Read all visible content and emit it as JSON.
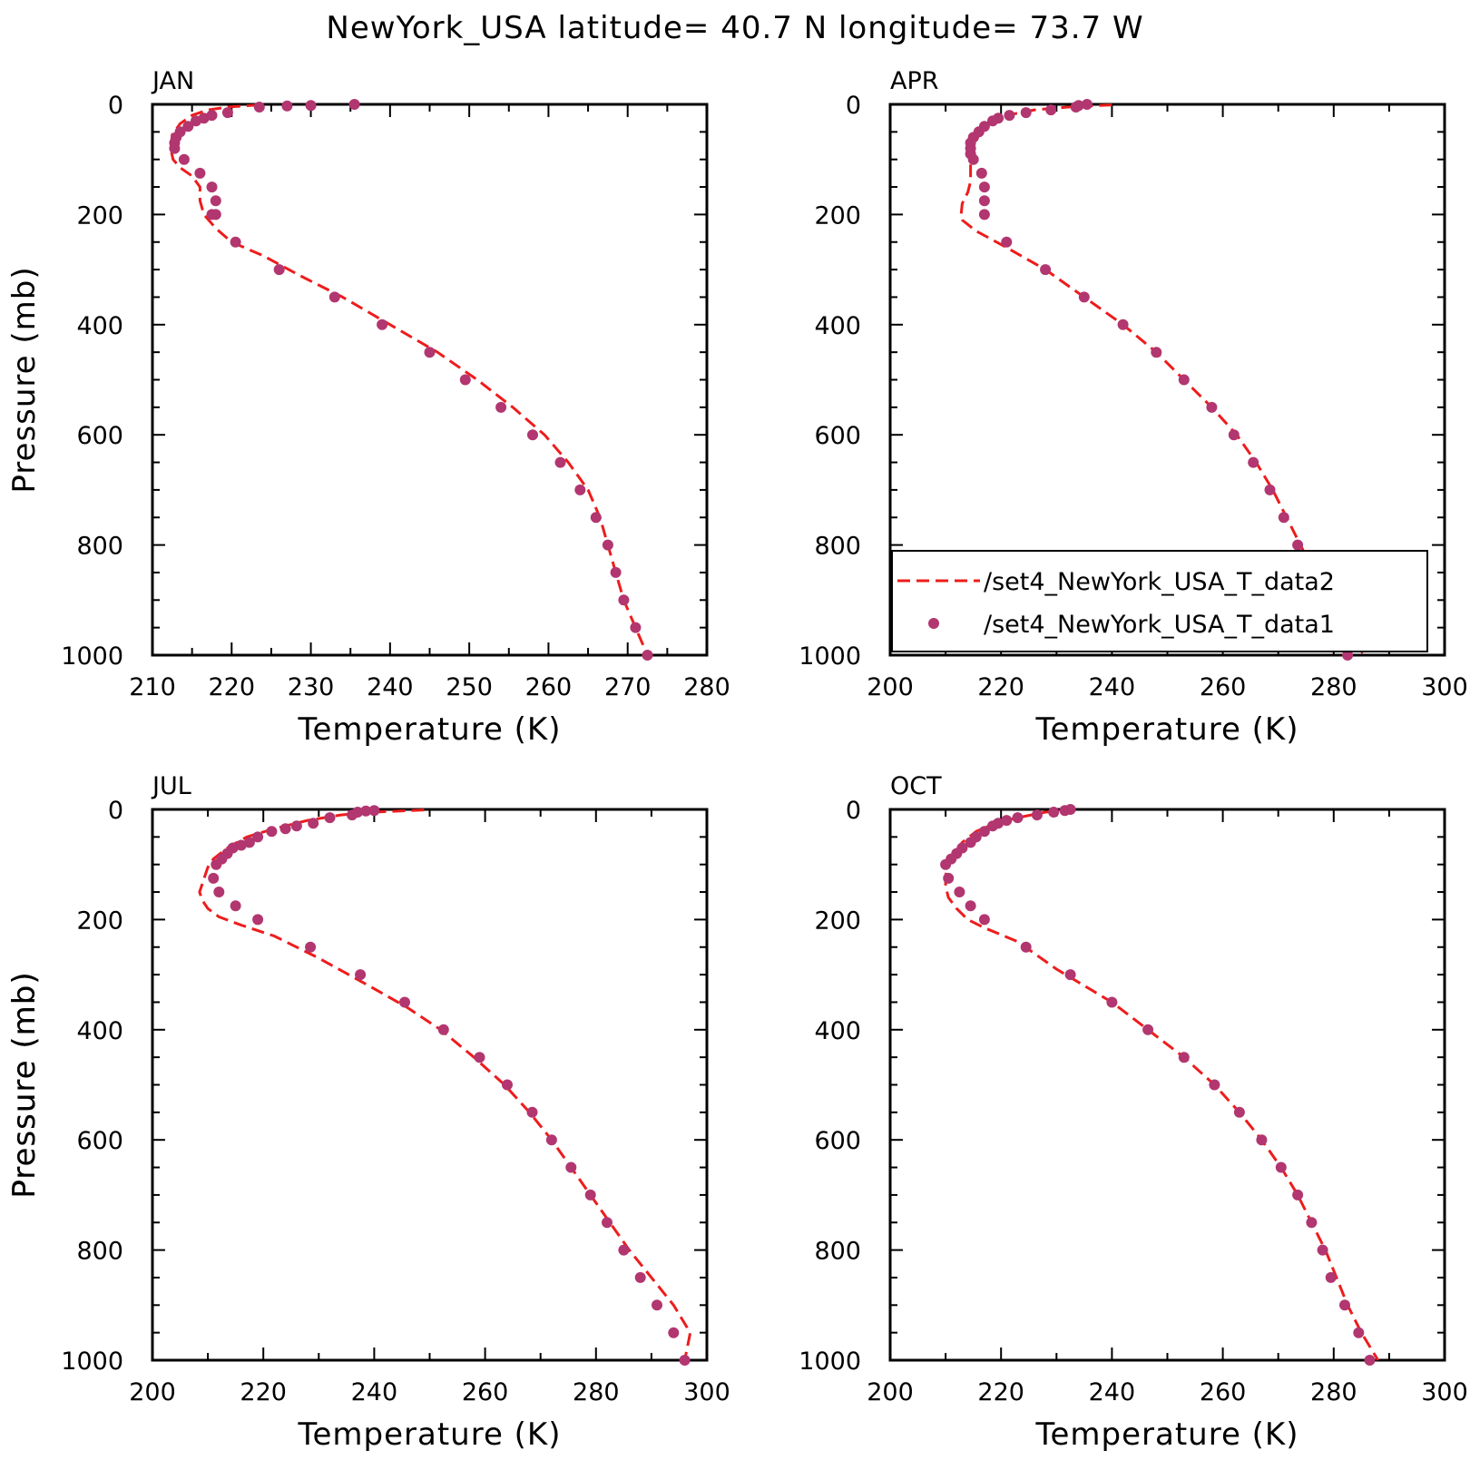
{
  "title": "NewYork_USA   latitude=  40.7 N  longitude=  73.7 W",
  "legend": {
    "line_label": "/set4_NewYork_USA_T_data2",
    "marker_label": "/set4_NewYork_USA_T_data1",
    "line_color": "#ee1c1c",
    "marker_color": "#b23670"
  },
  "chart_data": [
    {
      "type": "line",
      "panel": "JAN",
      "xlabel": "Temperature (K)",
      "ylabel": "Pressure (mb)",
      "xlim": [
        210,
        280
      ],
      "ylim": [
        1000,
        0
      ],
      "xticks": [
        210,
        220,
        230,
        240,
        250,
        260,
        270,
        280
      ],
      "yticks": [
        0,
        200,
        400,
        600,
        800,
        1000
      ],
      "series": [
        {
          "name": "/set4_NewYork_USA_T_data2",
          "style": "dashed-line",
          "x": [
            223.5,
            219.5,
            217,
            215,
            213.5,
            212.5,
            212.3,
            212.6,
            213.5,
            215,
            216,
            216,
            216.5,
            218,
            220,
            224,
            228.5,
            234,
            240,
            246,
            251,
            255.5,
            259.5,
            262.5,
            265,
            266.5,
            267.5,
            268.5,
            269.5,
            271,
            272.5
          ],
          "y": [
            1,
            5,
            10,
            20,
            35,
            55,
            80,
            100,
            115,
            130,
            150,
            175,
            200,
            225,
            250,
            275,
            310,
            350,
            400,
            450,
            500,
            550,
            600,
            650,
            700,
            750,
            800,
            850,
            900,
            950,
            1000
          ]
        },
        {
          "name": "/set4_NewYork_USA_T_data1",
          "style": "markers",
          "x": [
            235.5,
            230,
            227,
            223.5,
            219.5,
            217.5,
            216.5,
            215.5,
            214.5,
            213.5,
            213,
            212.8,
            212.8,
            214,
            216,
            217.5,
            218,
            218,
            217.5,
            220.5,
            226,
            233,
            239,
            245,
            249.5,
            254,
            258,
            261.5,
            264,
            266,
            267.5,
            268.5,
            269.5,
            271,
            272.5
          ],
          "y": [
            0,
            2,
            3,
            5,
            15,
            20,
            25,
            30,
            40,
            50,
            60,
            70,
            80,
            100,
            125,
            150,
            175,
            200,
            200,
            250,
            300,
            350,
            400,
            450,
            500,
            550,
            600,
            650,
            700,
            750,
            800,
            850,
            900,
            950,
            1000
          ]
        }
      ]
    },
    {
      "type": "line",
      "panel": "APR",
      "xlabel": "Temperature (K)",
      "ylabel": "",
      "xlim": [
        200,
        300
      ],
      "ylim": [
        1000,
        0
      ],
      "xticks": [
        200,
        220,
        240,
        260,
        280,
        300
      ],
      "yticks": [
        0,
        200,
        400,
        600,
        800,
        1000
      ],
      "series": [
        {
          "name": "/set4_NewYork_USA_T_data2",
          "style": "dashed-line",
          "x": [
            240,
            232,
            226,
            221,
            218,
            216,
            215,
            214.5,
            214.5,
            214.5,
            214,
            213,
            212.8,
            213,
            215.5,
            221,
            228,
            235,
            242,
            248,
            253,
            258,
            262.5,
            266,
            269,
            271.5,
            274,
            276.5,
            279,
            282,
            285.5
          ],
          "y": [
            1,
            5,
            10,
            20,
            35,
            55,
            80,
            100,
            120,
            140,
            160,
            180,
            200,
            210,
            230,
            260,
            300,
            350,
            400,
            450,
            500,
            550,
            600,
            650,
            700,
            750,
            800,
            850,
            900,
            950,
            1000
          ]
        },
        {
          "name": "/set4_NewYork_USA_T_data1",
          "style": "markers",
          "x": [
            235.5,
            234,
            233.5,
            229,
            224.5,
            221.5,
            219.5,
            218.5,
            217,
            216,
            215,
            214.5,
            214.5,
            214.5,
            215,
            216.5,
            217,
            217,
            217,
            221,
            228,
            235,
            242,
            248,
            253,
            258,
            262,
            265.5,
            268.5,
            271,
            273.5,
            276,
            278.5,
            281,
            282.5
          ],
          "y": [
            0,
            2,
            5,
            10,
            15,
            20,
            25,
            30,
            40,
            50,
            60,
            70,
            80,
            90,
            100,
            125,
            150,
            175,
            200,
            250,
            300,
            350,
            400,
            450,
            500,
            550,
            600,
            650,
            700,
            750,
            800,
            850,
            900,
            950,
            1000
          ]
        }
      ]
    },
    {
      "type": "line",
      "panel": "JUL",
      "xlabel": "Temperature (K)",
      "ylabel": "Pressure (mb)",
      "xlim": [
        200,
        300
      ],
      "ylim": [
        1000,
        0
      ],
      "xticks": [
        200,
        220,
        240,
        260,
        280,
        300
      ],
      "yticks": [
        0,
        200,
        400,
        600,
        800,
        1000
      ],
      "series": [
        {
          "name": "/set4_NewYork_USA_T_data2",
          "style": "dashed-line",
          "x": [
            249,
            240,
            234,
            228,
            222,
            217,
            213.5,
            211,
            210,
            209.5,
            209,
            208.5,
            209,
            210,
            212,
            216,
            222,
            230,
            239,
            246,
            252,
            258,
            263.5,
            268,
            272,
            275.5,
            279,
            282.5,
            286,
            290,
            294,
            297,
            296
          ],
          "y": [
            1,
            5,
            10,
            20,
            35,
            50,
            70,
            90,
            105,
            120,
            135,
            150,
            165,
            180,
            195,
            210,
            230,
            270,
            320,
            360,
            400,
            450,
            500,
            550,
            600,
            650,
            700,
            750,
            800,
            850,
            900,
            950,
            1000
          ]
        },
        {
          "name": "/set4_NewYork_USA_T_data1",
          "style": "markers",
          "x": [
            240,
            238.5,
            237,
            236,
            232,
            229,
            226,
            224,
            221.5,
            219,
            217.5,
            216,
            214.5,
            213.5,
            212.5,
            211.5,
            211,
            212,
            215,
            219,
            228.5,
            237.5,
            245.5,
            252.5,
            259,
            264,
            268.5,
            272,
            275.5,
            279,
            282,
            285,
            288,
            291,
            294,
            296
          ],
          "y": [
            2,
            3,
            5,
            10,
            15,
            25,
            30,
            35,
            40,
            50,
            60,
            65,
            70,
            80,
            90,
            100,
            125,
            150,
            175,
            200,
            250,
            300,
            350,
            400,
            450,
            500,
            550,
            600,
            650,
            700,
            750,
            800,
            850,
            900,
            950,
            1000
          ]
        }
      ]
    },
    {
      "type": "line",
      "panel": "OCT",
      "xlabel": "Temperature (K)",
      "ylabel": "Pressure (mb)",
      "xlim": [
        200,
        300
      ],
      "ylim": [
        1000,
        0
      ],
      "xticks": [
        200,
        220,
        240,
        260,
        280,
        300
      ],
      "yticks": [
        0,
        200,
        400,
        600,
        800,
        1000
      ],
      "series": [
        {
          "name": "/set4_NewYork_USA_T_data2",
          "style": "dashed-line",
          "x": [
            233,
            228,
            223,
            219,
            215.5,
            213,
            211.5,
            210.5,
            210,
            210,
            210.5,
            212,
            214,
            217,
            223,
            230,
            240,
            246.5,
            253,
            258.5,
            263,
            267,
            270.5,
            273.5,
            276,
            278.5,
            280.5,
            282.5,
            285,
            288
          ],
          "y": [
            1,
            5,
            15,
            25,
            40,
            60,
            80,
            100,
            120,
            140,
            160,
            180,
            200,
            215,
            240,
            290,
            350,
            400,
            450,
            500,
            550,
            600,
            650,
            700,
            750,
            800,
            850,
            900,
            950,
            1000
          ]
        },
        {
          "name": "/set4_NewYork_USA_T_data1",
          "style": "markers",
          "x": [
            232.5,
            231.5,
            229.5,
            226.5,
            223,
            221,
            219.5,
            218.5,
            217,
            215.5,
            214.5,
            213,
            212,
            211,
            210,
            210.5,
            212.5,
            214.5,
            217,
            224.5,
            232.5,
            240,
            246.5,
            253,
            258.5,
            263,
            267,
            270.5,
            273.5,
            276,
            278,
            279.5,
            282,
            284.5,
            286.5
          ],
          "y": [
            0,
            2,
            5,
            10,
            15,
            20,
            25,
            30,
            40,
            50,
            60,
            70,
            80,
            90,
            100,
            125,
            150,
            175,
            200,
            250,
            300,
            350,
            400,
            450,
            500,
            550,
            600,
            650,
            700,
            750,
            800,
            850,
            900,
            950,
            1000
          ]
        }
      ]
    }
  ]
}
